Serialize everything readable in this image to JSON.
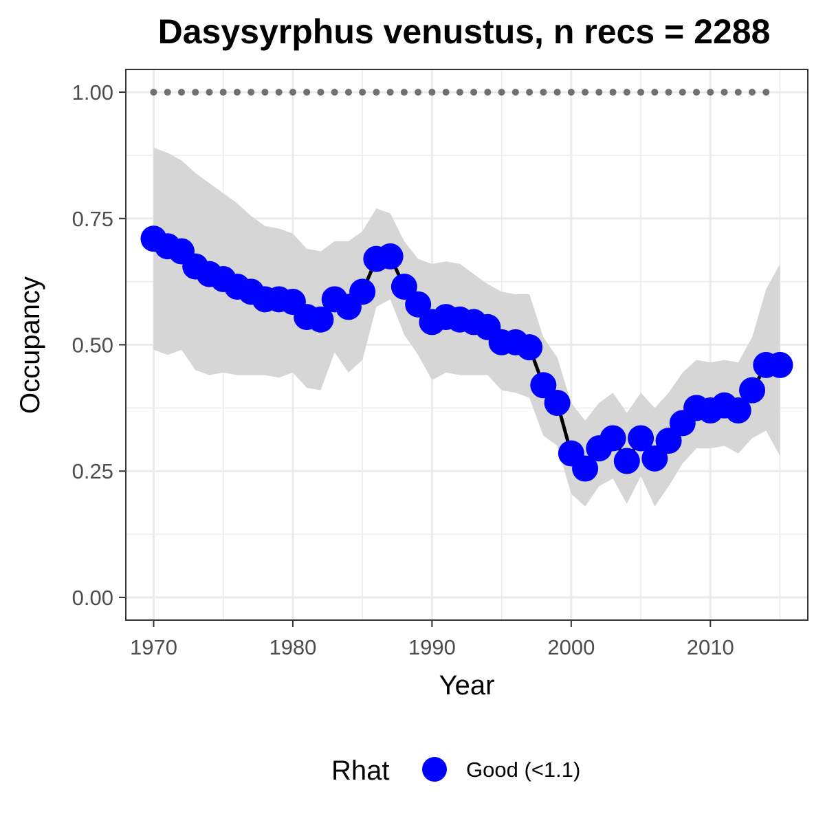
{
  "chart_data": {
    "type": "line",
    "title": "Dasysyrphus venustus, n recs = 2288",
    "xlabel": "Year",
    "ylabel": "Occupancy",
    "xlim": [
      1968,
      2017
    ],
    "ylim": [
      -0.045,
      1.045
    ],
    "x_ticks": [
      1970,
      1980,
      1990,
      2000,
      2010
    ],
    "x_tick_labels": [
      "1970",
      "1980",
      "1990",
      "2000",
      "2010"
    ],
    "y_ticks": [
      0,
      0.25,
      0.5,
      0.75,
      1.0
    ],
    "y_tick_labels": [
      "0.00",
      "0.25",
      "0.50",
      "0.75",
      "1.00"
    ],
    "grid": true,
    "legend": {
      "title": "Rhat",
      "placement": "bottom",
      "entries": [
        {
          "label": "Good (<1.1)",
          "color": "#0000ff"
        }
      ]
    },
    "colors": {
      "points": "#0000ff",
      "line": "#000000",
      "ribbon": "#d6d6d6",
      "reference_dots": "#707070",
      "grid": "#ebebeb",
      "panel_border": "#333333"
    },
    "series": [
      {
        "x": [
          1970,
          1971,
          1972,
          1973,
          1974,
          1975,
          1976,
          1977,
          1978,
          1979,
          1980,
          1981,
          1982,
          1983,
          1984,
          1985,
          1986,
          1987,
          1988,
          1989,
          1990,
          1991,
          1992,
          1993,
          1994,
          1995,
          1996,
          1997,
          1998,
          1999,
          2000,
          2001,
          2002,
          2003,
          2004,
          2005,
          2006,
          2007,
          2008,
          2009,
          2010,
          2011,
          2012,
          2013,
          2014,
          2015
        ],
        "y": [
          0.71,
          0.695,
          0.685,
          0.655,
          0.64,
          0.63,
          0.615,
          0.605,
          0.59,
          0.59,
          0.585,
          0.555,
          0.55,
          0.59,
          0.575,
          0.605,
          0.67,
          0.675,
          0.615,
          0.58,
          0.545,
          0.555,
          0.55,
          0.545,
          0.535,
          0.505,
          0.505,
          0.495,
          0.42,
          0.385,
          0.285,
          0.255,
          0.295,
          0.315,
          0.27,
          0.315,
          0.275,
          0.31,
          0.345,
          0.375,
          0.37,
          0.38,
          0.37,
          0.41,
          0.46,
          0.46
        ],
        "lower": [
          0.49,
          0.48,
          0.49,
          0.45,
          0.44,
          0.445,
          0.44,
          0.44,
          0.44,
          0.435,
          0.445,
          0.415,
          0.41,
          0.485,
          0.445,
          0.47,
          0.575,
          0.59,
          0.52,
          0.48,
          0.43,
          0.445,
          0.44,
          0.44,
          0.44,
          0.41,
          0.405,
          0.395,
          0.32,
          0.3,
          0.205,
          0.18,
          0.22,
          0.235,
          0.185,
          0.24,
          0.18,
          0.22,
          0.265,
          0.295,
          0.295,
          0.3,
          0.285,
          0.315,
          0.33,
          0.28
        ],
        "upper": [
          0.89,
          0.88,
          0.865,
          0.84,
          0.82,
          0.8,
          0.78,
          0.755,
          0.735,
          0.73,
          0.72,
          0.69,
          0.685,
          0.705,
          0.705,
          0.725,
          0.77,
          0.76,
          0.705,
          0.67,
          0.66,
          0.665,
          0.66,
          0.64,
          0.62,
          0.605,
          0.6,
          0.6,
          0.515,
          0.475,
          0.385,
          0.35,
          0.385,
          0.405,
          0.365,
          0.405,
          0.375,
          0.405,
          0.445,
          0.47,
          0.465,
          0.47,
          0.465,
          0.515,
          0.61,
          0.66
        ]
      }
    ],
    "reference_line": {
      "y": 1.0,
      "x": [
        1970,
        1971,
        1972,
        1973,
        1974,
        1975,
        1976,
        1977,
        1978,
        1979,
        1980,
        1981,
        1982,
        1983,
        1984,
        1985,
        1986,
        1987,
        1988,
        1989,
        1990,
        1991,
        1992,
        1993,
        1994,
        1995,
        1996,
        1997,
        1998,
        1999,
        2000,
        2001,
        2002,
        2003,
        2004,
        2005,
        2006,
        2007,
        2008,
        2009,
        2010,
        2011,
        2012,
        2013,
        2014
      ]
    }
  }
}
